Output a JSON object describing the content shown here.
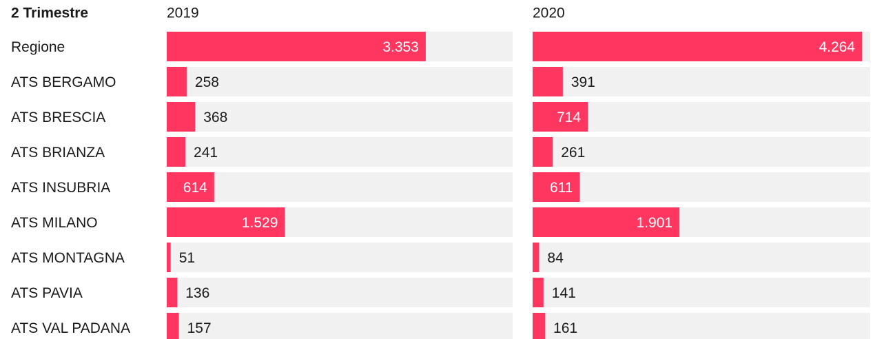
{
  "chart_data": {
    "type": "bar",
    "title": "2 Trimestre",
    "categories": [
      "Regione",
      "ATS BERGAMO",
      "ATS BRESCIA",
      "ATS BRIANZA",
      "ATS INSUBRIA",
      "ATS MILANO",
      "ATS MONTAGNA",
      "ATS PAVIA",
      "ATS VAL PADANA"
    ],
    "series": [
      {
        "name": "2019",
        "color": "#ff3660",
        "values": [
          3353,
          258,
          368,
          241,
          614,
          1529,
          51,
          136,
          157
        ],
        "value_labels": [
          "3.353",
          "258",
          "368",
          "241",
          "614",
          "1.529",
          "51",
          "136",
          "157"
        ]
      },
      {
        "name": "2020",
        "color": "#ff3660",
        "values": [
          4264,
          391,
          714,
          261,
          611,
          1901,
          84,
          141,
          161
        ],
        "value_labels": [
          "4.264",
          "391",
          "714",
          "261",
          "611",
          "1.901",
          "84",
          "141",
          "161"
        ]
      }
    ]
  }
}
